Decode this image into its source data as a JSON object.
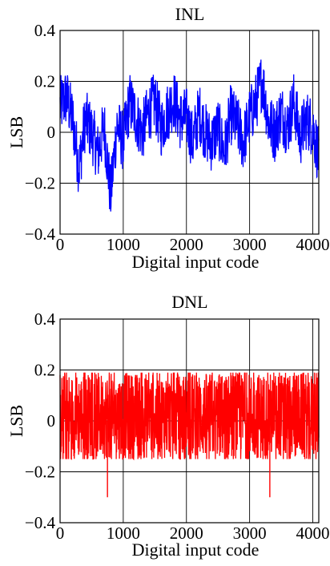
{
  "chart_data": [
    {
      "type": "line",
      "title": "INL",
      "xlabel": "Digital input code",
      "ylabel": "LSB",
      "xlim": [
        0,
        4095
      ],
      "ylim": [
        -0.4,
        0.4
      ],
      "xticks": [
        0,
        1000,
        2000,
        3000,
        4000
      ],
      "xtick_labels": [
        "0",
        "1000",
        "2000",
        "3000",
        "4000"
      ],
      "yticks": [
        0.4,
        0.2,
        0,
        -0.2,
        -0.4
      ],
      "ytick_labels": [
        "0.4",
        "0.2",
        "0",
        "−0.2",
        "−0.4"
      ],
      "grid": true,
      "color": "#0000ff",
      "series": [
        {
          "x": [
            0,
            100,
            200,
            300,
            400,
            500,
            600,
            700,
            800,
            900,
            1000,
            1100,
            1200,
            1300,
            1400,
            1500,
            1600,
            1700,
            1800,
            1900,
            2000,
            2100,
            2200,
            2300,
            2400,
            2500,
            2600,
            2700,
            2800,
            2900,
            3000,
            3100,
            3200,
            3300,
            3400,
            3500,
            3600,
            3700,
            3800,
            3900,
            4000,
            4095
          ],
          "values": [
            0.1,
            0.14,
            0.05,
            -0.14,
            0.05,
            0.0,
            -0.08,
            0.02,
            -0.25,
            0.03,
            -0.04,
            0.12,
            0.06,
            0.0,
            0.08,
            0.12,
            0.02,
            0.08,
            0.13,
            0.05,
            0.06,
            -0.04,
            0.08,
            0.0,
            -0.04,
            0.02,
            -0.08,
            0.07,
            0.03,
            -0.04,
            0.06,
            0.12,
            0.21,
            0.04,
            0.0,
            0.08,
            0.02,
            0.12,
            -0.02,
            0.05,
            0.02,
            -0.1
          ],
          "min": -0.36,
          "max": 0.37
        }
      ]
    },
    {
      "type": "line",
      "title": "DNL",
      "xlabel": "Digital input code",
      "ylabel": "LSB",
      "xlim": [
        0,
        4095
      ],
      "ylim": [
        -0.4,
        0.4
      ],
      "xticks": [
        0,
        1000,
        2000,
        3000,
        4000
      ],
      "xtick_labels": [
        "0",
        "1000",
        "2000",
        "3000",
        "4000"
      ],
      "yticks": [
        0.4,
        0.2,
        0,
        -0.2,
        -0.4
      ],
      "ytick_labels": [
        "0.4",
        "0.2",
        "0",
        "−0.2",
        "−0.4"
      ],
      "grid": true,
      "color": "#ff0000",
      "series": [
        {
          "band_min": -0.15,
          "band_max": 0.19,
          "min": -0.3,
          "max": 0.2,
          "spikes": [
            {
              "x": 750,
              "value": -0.3
            },
            {
              "x": 3320,
              "value": -0.3
            }
          ]
        }
      ]
    }
  ]
}
